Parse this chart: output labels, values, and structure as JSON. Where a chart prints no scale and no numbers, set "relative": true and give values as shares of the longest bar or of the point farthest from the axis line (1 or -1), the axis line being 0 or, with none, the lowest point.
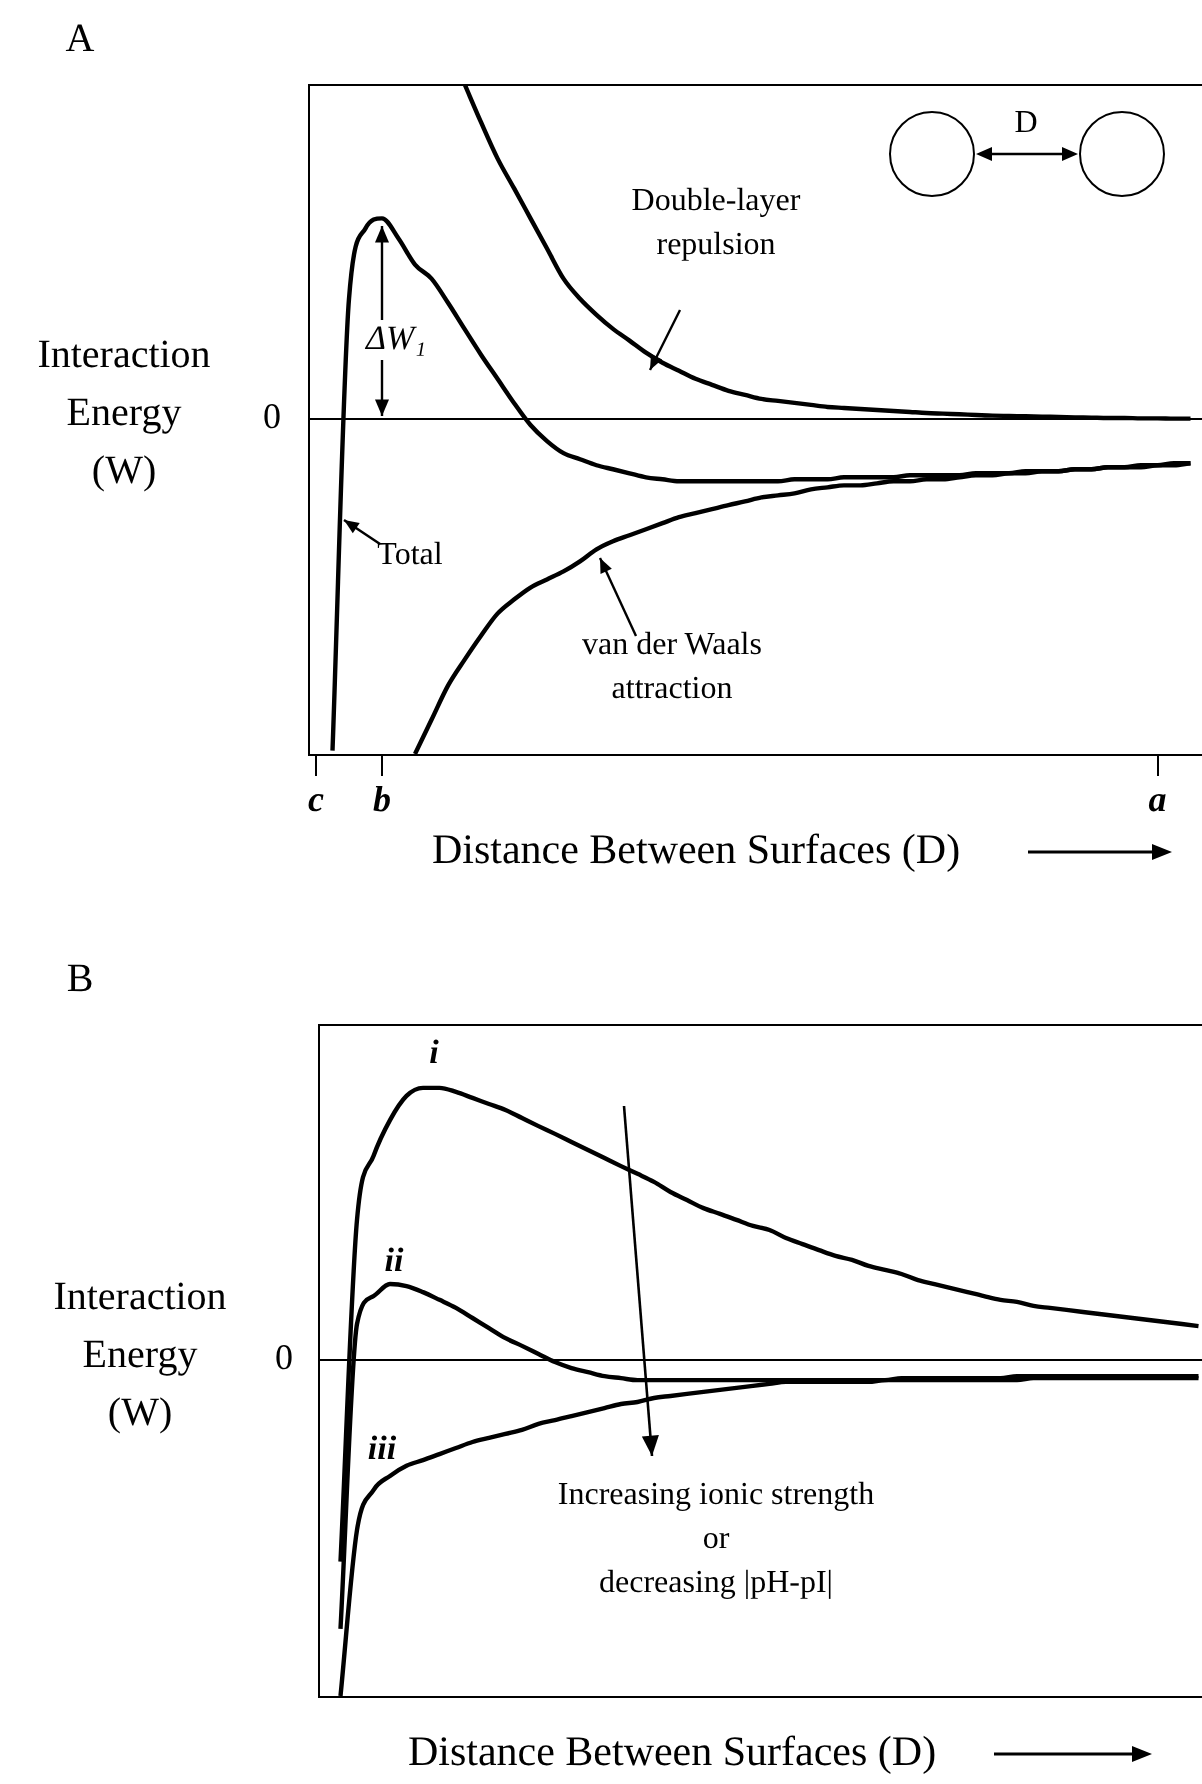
{
  "chart_data": [
    {
      "type": "line",
      "title": "A",
      "xlabel": "Distance Between Surfaces (D)",
      "ylabel": "Interaction Energy (W)",
      "relative": true,
      "categories": [
        "c",
        null,
        null,
        null,
        "b",
        null,
        null,
        null,
        null,
        null,
        null,
        null,
        null,
        null,
        null,
        null,
        null,
        null,
        null,
        null,
        null,
        null,
        null,
        null,
        null,
        null,
        null,
        null,
        null,
        null,
        null,
        null,
        null,
        null,
        null,
        null,
        null,
        null,
        null,
        null,
        null,
        null,
        null,
        null,
        null,
        null,
        null,
        null,
        null,
        null,
        null,
        "a",
        null,
        null
      ],
      "series": [
        {
          "name": "Total",
          "color": "#000000",
          "values": [
            null,
            -0.99,
            0.359,
            0.569,
            0.599,
            0.539,
            0.461,
            0.419,
            0.347,
            0.269,
            0.192,
            0.12,
            0.048,
            -0.018,
            -0.066,
            -0.102,
            -0.12,
            -0.138,
            -0.15,
            -0.162,
            -0.174,
            -0.18,
            -0.186,
            -0.186,
            -0.186,
            -0.186,
            -0.186,
            -0.186,
            -0.186,
            -0.18,
            -0.18,
            -0.18,
            -0.174,
            -0.174,
            -0.174,
            -0.174,
            -0.168,
            -0.168,
            -0.168,
            -0.168,
            -0.162,
            -0.162,
            -0.162,
            -0.156,
            -0.156,
            -0.156,
            -0.15,
            -0.15,
            -0.144,
            -0.144,
            -0.144,
            -0.138,
            -0.138,
            -0.132
          ]
        },
        {
          "name": "Double-layer repulsion",
          "color": "#000000",
          "values": [
            null,
            null,
            null,
            null,
            null,
            null,
            null,
            null,
            null,
            1,
            0.886,
            0.778,
            0.689,
            0.599,
            0.509,
            0.419,
            0.359,
            0.311,
            0.269,
            0.234,
            0.198,
            0.168,
            0.144,
            0.12,
            0.102,
            0.084,
            0.072,
            0.06,
            0.054,
            0.048,
            0.042,
            0.036,
            0.033,
            0.03,
            0.027,
            0.024,
            0.021,
            0.018,
            0.016,
            0.014,
            0.012,
            0.01,
            0.009,
            0.008,
            0.007,
            0.006,
            0.005,
            0.004,
            0.003,
            0.003,
            0.002,
            0.002,
            0.001,
            0.001
          ]
        },
        {
          "name": "van der Waals attraction",
          "color": "#000000",
          "values": [
            null,
            null,
            null,
            null,
            null,
            null,
            -1,
            -0.898,
            -0.796,
            -0.719,
            -0.647,
            -0.581,
            -0.539,
            -0.503,
            -0.479,
            -0.455,
            -0.425,
            -0.389,
            -0.365,
            -0.347,
            -0.329,
            -0.311,
            -0.293,
            -0.281,
            -0.269,
            -0.257,
            -0.246,
            -0.234,
            -0.228,
            -0.222,
            -0.21,
            -0.204,
            -0.198,
            -0.198,
            -0.192,
            -0.186,
            -0.186,
            -0.18,
            -0.18,
            -0.174,
            -0.168,
            -0.168,
            -0.162,
            -0.162,
            -0.156,
            -0.156,
            -0.15,
            -0.15,
            -0.144,
            -0.144,
            -0.138,
            -0.138,
            -0.132,
            -0.132
          ]
        }
      ],
      "annotations": [
        "ΔW₁",
        "D"
      ],
      "ref_lines": [
        {
          "axis": "y",
          "value": 0,
          "label": "0"
        }
      ]
    },
    {
      "type": "line",
      "title": "B",
      "xlabel": "Distance Between Surfaces (D)",
      "ylabel": "Interaction Energy (W)",
      "relative": true,
      "categories": [
        null,
        null,
        null,
        null,
        null,
        null,
        null,
        null,
        null,
        null,
        null,
        null,
        null,
        null,
        null,
        null,
        null,
        null,
        null,
        null,
        null,
        null,
        null,
        null,
        null,
        null,
        null,
        null,
        null,
        null,
        null,
        null,
        null,
        null,
        null,
        null,
        null,
        null,
        null,
        null,
        null,
        null,
        null,
        null,
        null,
        null,
        null,
        null,
        null,
        null,
        null,
        null,
        null,
        null
      ],
      "series": [
        {
          "name": "i",
          "color": "#000000",
          "values": [
            null,
            -0.6,
            0.417,
            0.607,
            0.714,
            0.786,
            0.81,
            0.81,
            0.798,
            0.78,
            0.762,
            0.744,
            0.72,
            0.696,
            0.673,
            0.649,
            0.625,
            0.601,
            0.577,
            0.554,
            0.53,
            0.5,
            0.476,
            0.452,
            0.435,
            0.417,
            0.399,
            0.387,
            0.363,
            0.345,
            0.327,
            0.31,
            0.298,
            0.28,
            0.268,
            0.256,
            0.238,
            0.226,
            0.214,
            0.202,
            0.19,
            0.179,
            0.173,
            0.161,
            0.155,
            0.149,
            0.143,
            0.137,
            0.131,
            0.125,
            0.119,
            0.113,
            0.107,
            0.101
          ]
        },
        {
          "name": "ii",
          "color": "#000000",
          "values": [
            null,
            -0.8,
            0.107,
            0.19,
            0.226,
            0.22,
            0.202,
            0.179,
            0.155,
            0.125,
            0.095,
            0.065,
            0.042,
            0.018,
            -0.006,
            -0.024,
            -0.036,
            -0.048,
            -0.054,
            -0.06,
            -0.06,
            -0.06,
            -0.06,
            -0.06,
            -0.06,
            -0.06,
            -0.06,
            -0.06,
            -0.06,
            -0.06,
            -0.06,
            -0.06,
            -0.06,
            -0.06,
            -0.06,
            -0.054,
            -0.054,
            -0.054,
            -0.054,
            -0.054,
            -0.054,
            -0.054,
            -0.048,
            -0.048,
            -0.048,
            -0.048,
            -0.048,
            -0.048,
            -0.048,
            -0.048,
            -0.048,
            -0.048,
            -0.048,
            -0.048
          ]
        },
        {
          "name": "iii",
          "color": "#000000",
          "values": [
            null,
            -1,
            -0.506,
            -0.387,
            -0.345,
            -0.315,
            -0.298,
            -0.28,
            -0.262,
            -0.244,
            -0.232,
            -0.22,
            -0.208,
            -0.19,
            -0.179,
            -0.167,
            -0.155,
            -0.143,
            -0.131,
            -0.125,
            -0.113,
            -0.107,
            -0.101,
            -0.095,
            -0.089,
            -0.083,
            -0.077,
            -0.071,
            -0.065,
            -0.065,
            -0.065,
            -0.065,
            -0.065,
            -0.065,
            -0.06,
            -0.06,
            -0.06,
            -0.06,
            -0.06,
            -0.06,
            -0.06,
            -0.06,
            -0.06,
            -0.054,
            -0.054,
            -0.054,
            -0.054,
            -0.054,
            -0.054,
            -0.054,
            -0.054,
            -0.054,
            -0.054,
            -0.054
          ]
        }
      ],
      "annotations": [
        "Increasing ionic strength\nor\ndecreasing |pH-pI|"
      ],
      "ref_lines": [
        {
          "axis": "y",
          "value": 0,
          "label": "0"
        }
      ]
    }
  ]
}
